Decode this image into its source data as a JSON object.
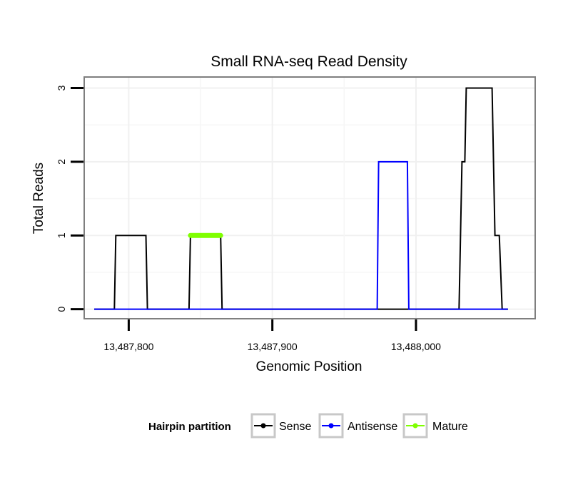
{
  "chart_data": {
    "type": "line",
    "title": "Small RNA-seq Read Density",
    "xlabel": "Genomic Position",
    "ylabel": "Total Reads",
    "xlim": [
      13487769,
      13488083
    ],
    "ylim": [
      -0.13,
      3.15
    ],
    "xticks": [
      {
        "value": 13487800,
        "label": "13,487,800"
      },
      {
        "value": 13487900,
        "label": "13,487,900"
      },
      {
        "value": 13488000,
        "label": "13,488,000"
      }
    ],
    "yticks": [
      {
        "value": 0,
        "label": "0"
      },
      {
        "value": 1,
        "label": "1"
      },
      {
        "value": 2,
        "label": "2"
      },
      {
        "value": 3,
        "label": "3"
      }
    ],
    "grid": true,
    "legend": {
      "title": "Hairpin partition",
      "position": "bottom",
      "entries": [
        {
          "name": "Sense",
          "color": "#000000"
        },
        {
          "name": "Antisense",
          "color": "#0000ff"
        },
        {
          "name": "Mature",
          "color": "#7fff00"
        }
      ]
    },
    "series": [
      {
        "name": "Sense",
        "color": "#000000",
        "x": [
          13487776,
          13487790,
          13487791,
          13487812,
          13487813,
          13487842,
          13487843,
          13487864,
          13487865,
          13488030,
          13488032,
          13488034,
          13488035,
          13488053,
          13488055,
          13488058,
          13488060,
          13488064
        ],
        "y": [
          0,
          0,
          1,
          1,
          0,
          0,
          1,
          1,
          0,
          0,
          2,
          2,
          3,
          3,
          1,
          1,
          0,
          0
        ]
      },
      {
        "name": "Antisense",
        "color": "#0000ff",
        "x": [
          13487776,
          13487973,
          13487974,
          13487994,
          13487995,
          13488064
        ],
        "y": [
          0,
          0,
          2,
          2,
          0,
          0
        ]
      },
      {
        "name": "Mature",
        "color": "#7fff00",
        "x": [
          13487843,
          13487864
        ],
        "y": [
          1,
          1
        ]
      }
    ]
  }
}
